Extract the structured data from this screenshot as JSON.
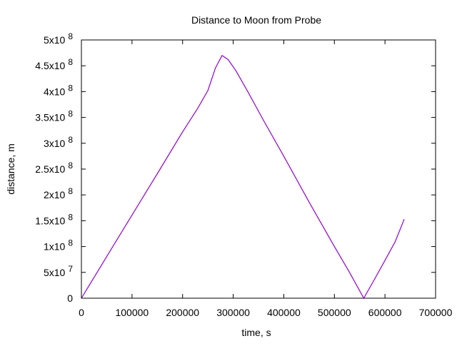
{
  "chart_data": {
    "type": "line",
    "title": "Distance to Moon from Probe",
    "xlabel": "time, s",
    "ylabel": "distance, m",
    "xlim": [
      0,
      700000
    ],
    "ylim": [
      0,
      500000000
    ],
    "x_ticks": [
      {
        "value": 0,
        "label": "0"
      },
      {
        "value": 100000,
        "label": "100000"
      },
      {
        "value": 200000,
        "label": "200000"
      },
      {
        "value": 300000,
        "label": "300000"
      },
      {
        "value": 400000,
        "label": "400000"
      },
      {
        "value": 500000,
        "label": "500000"
      },
      {
        "value": 600000,
        "label": "600000"
      },
      {
        "value": 700000,
        "label": "700000"
      }
    ],
    "y_ticks": [
      {
        "value": 0,
        "mant": "0",
        "exp": ""
      },
      {
        "value": 50000000,
        "mant": "5x10",
        "exp": "7"
      },
      {
        "value": 100000000,
        "mant": "1x10",
        "exp": "8"
      },
      {
        "value": 150000000,
        "mant": "1.5x10",
        "exp": "8"
      },
      {
        "value": 200000000,
        "mant": "2x10",
        "exp": "8"
      },
      {
        "value": 250000000,
        "mant": "2.5x10",
        "exp": "8"
      },
      {
        "value": 300000000,
        "mant": "3x10",
        "exp": "8"
      },
      {
        "value": 350000000,
        "mant": "3.5x10",
        "exp": "8"
      },
      {
        "value": 400000000,
        "mant": "4x10",
        "exp": "8"
      },
      {
        "value": 450000000,
        "mant": "4.5x10",
        "exp": "8"
      },
      {
        "value": 500000000,
        "mant": "5x10",
        "exp": "8"
      }
    ],
    "grid": false,
    "legend": "none",
    "series": [
      {
        "color": "#9400d3",
        "x": [
          0,
          50000,
          100000,
          150000,
          200000,
          230000,
          250000,
          265000,
          278000,
          290000,
          305000,
          330000,
          360000,
          400000,
          450000,
          500000,
          530000,
          558000,
          580000,
          600000,
          620000,
          638000
        ],
        "y": [
          0,
          80500000,
          161000000,
          241000000,
          322000000,
          368000000,
          402000000,
          446000000,
          470000000,
          462000000,
          441000000,
          398000000,
          344000000,
          275000000,
          186000000,
          100000000,
          50000000,
          0,
          38000000,
          73000000,
          109000000,
          153000000
        ]
      }
    ]
  }
}
